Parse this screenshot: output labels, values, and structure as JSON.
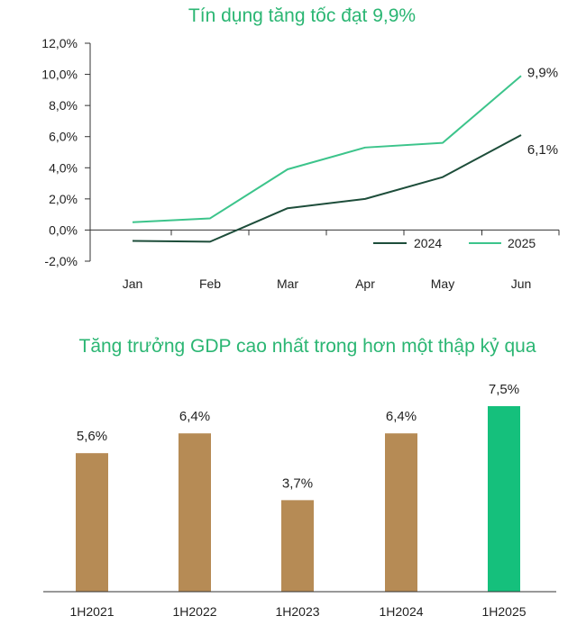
{
  "colors": {
    "title": "#2bb673",
    "series_2024": "#1d4d3a",
    "series_2025": "#3cc48b",
    "bar_default": "#b68b55",
    "bar_highlight": "#15c07c",
    "axis": "#333333"
  },
  "chart_data": [
    {
      "type": "line",
      "title": "Tín dụng tăng tốc đạt 9,9%",
      "categories": [
        "Jan",
        "Feb",
        "Mar",
        "Apr",
        "May",
        "Jun"
      ],
      "ylim": [
        -2.0,
        12.0
      ],
      "yticks": [
        "12,0%",
        "10,0%",
        "8,0%",
        "6,0%",
        "4,0%",
        "2,0%",
        "0,0%",
        "-2,0%"
      ],
      "ytick_values": [
        12,
        10,
        8,
        6,
        4,
        2,
        0,
        -2
      ],
      "grid": false,
      "legend": "bottom-right",
      "series": [
        {
          "name": "2024",
          "values": [
            -0.7,
            -0.75,
            1.4,
            2.0,
            3.4,
            6.1
          ],
          "end_label": "6,1%"
        },
        {
          "name": "2025",
          "values": [
            0.5,
            0.75,
            3.9,
            5.3,
            5.6,
            9.9
          ],
          "end_label": "9,9%"
        }
      ]
    },
    {
      "type": "bar",
      "title": "Tăng trưởng GDP cao nhất trong hơn một thập kỷ qua",
      "categories": [
        "1H2021",
        "1H2022",
        "1H2023",
        "1H2024",
        "1H2025"
      ],
      "values": [
        5.6,
        6.4,
        3.7,
        6.4,
        7.5
      ],
      "data_labels": [
        "5,6%",
        "6,4%",
        "3,7%",
        "6,4%",
        "7,5%"
      ],
      "highlight_index": 4,
      "ylim": [
        0,
        7.5
      ]
    }
  ]
}
